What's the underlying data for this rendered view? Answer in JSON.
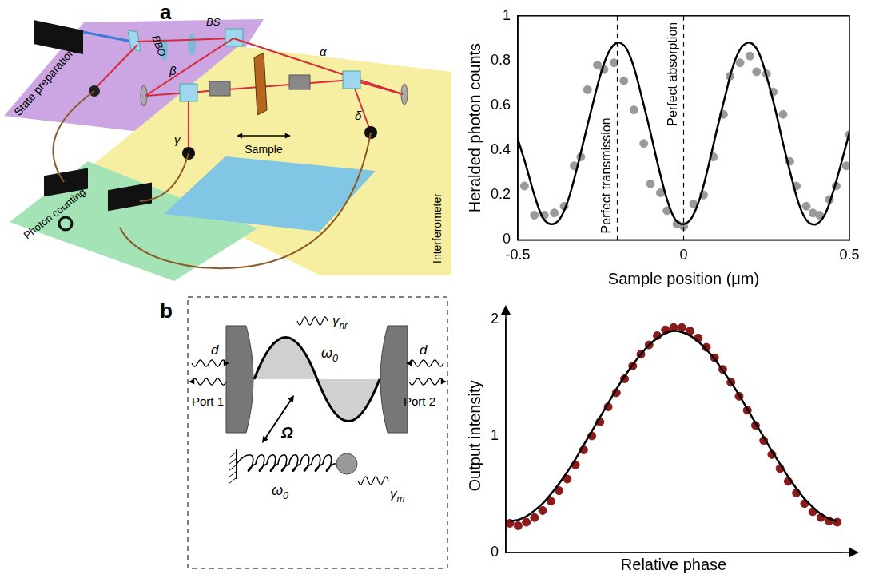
{
  "chart_data": [
    {
      "type": "scatter",
      "x_label": "Sample position (μm)",
      "y_label": "Heralded photon counts",
      "xlim": [
        -0.5,
        0.5
      ],
      "xticks": [
        -0.5,
        0,
        0.5
      ],
      "ylim": [
        0,
        1
      ],
      "yticks": [
        0,
        0.2,
        0.4,
        0.6,
        0.8,
        1
      ],
      "grid": false,
      "series": [
        {
          "type": "scatter",
          "color": "#999999",
          "marker": "circle",
          "x": [
            -0.48,
            -0.45,
            -0.42,
            -0.39,
            -0.36,
            -0.33,
            -0.31,
            -0.29,
            -0.26,
            -0.24,
            -0.21,
            -0.18,
            -0.15,
            -0.12,
            -0.1,
            -0.07,
            -0.05,
            -0.02,
            0.0,
            0.03,
            0.06,
            0.09,
            0.12,
            0.14,
            0.17,
            0.2,
            0.22,
            0.25,
            0.27,
            0.3,
            0.32,
            0.34,
            0.37,
            0.39,
            0.41,
            0.44,
            0.46,
            0.49,
            0.5
          ],
          "values": [
            0.24,
            0.11,
            0.11,
            0.12,
            0.15,
            0.33,
            0.37,
            0.67,
            0.78,
            0.76,
            0.79,
            0.71,
            0.58,
            0.43,
            0.25,
            0.21,
            0.13,
            0.07,
            0.06,
            0.16,
            0.2,
            0.37,
            0.56,
            0.73,
            0.79,
            0.82,
            0.75,
            0.74,
            0.66,
            0.56,
            0.35,
            0.24,
            0.15,
            0.12,
            0.11,
            0.18,
            0.24,
            0.33,
            0.47
          ]
        },
        {
          "type": "line",
          "color": "#000000",
          "line_style": "solid",
          "x": [
            -0.5,
            -0.475,
            -0.45,
            -0.425,
            -0.4,
            -0.375,
            -0.35,
            -0.325,
            -0.3,
            -0.275,
            -0.25,
            -0.225,
            -0.2,
            -0.175,
            -0.15,
            -0.125,
            -0.1,
            -0.075,
            -0.05,
            -0.025,
            0,
            0.025,
            0.05,
            0.075,
            0.1,
            0.125,
            0.15,
            0.175,
            0.2,
            0.225,
            0.25,
            0.275,
            0.3,
            0.325,
            0.35,
            0.375,
            0.4,
            0.425,
            0.45,
            0.475,
            0.5
          ],
          "values": [
            0.45,
            0.33,
            0.2,
            0.1,
            0.07,
            0.09,
            0.17,
            0.3,
            0.45,
            0.6,
            0.74,
            0.84,
            0.88,
            0.86,
            0.77,
            0.63,
            0.48,
            0.32,
            0.18,
            0.09,
            0.07,
            0.1,
            0.19,
            0.33,
            0.49,
            0.64,
            0.78,
            0.86,
            0.88,
            0.84,
            0.73,
            0.59,
            0.43,
            0.28,
            0.15,
            0.08,
            0.07,
            0.11,
            0.21,
            0.34,
            0.48
          ]
        }
      ],
      "annotations": [
        {
          "x": -0.2,
          "text": "Perfect transmission",
          "line_style": "dashed"
        },
        {
          "x": 0,
          "text": "Perfect absorption",
          "line_style": "dashed"
        }
      ]
    },
    {
      "type": "line",
      "x_label": "Relative phase",
      "y_label": "Output intensity",
      "categories": [
        null,
        null,
        null,
        null,
        null,
        null,
        null,
        null,
        null,
        null,
        null,
        null,
        null,
        null,
        null,
        null,
        null,
        null,
        null,
        null,
        null,
        null,
        null,
        null,
        null,
        null,
        null,
        null,
        null,
        null,
        null,
        null,
        null,
        null,
        null,
        null,
        null,
        null,
        null,
        null,
        null
      ],
      "ylim": [
        0,
        2
      ],
      "yticks": [
        0,
        1,
        2
      ],
      "grid": false,
      "tick_labels": "y",
      "series": [
        {
          "type": "scatter",
          "color": "#8b1a1a",
          "marker": "circle",
          "values": [
            0.25,
            0.23,
            0.26,
            0.3,
            0.36,
            0.44,
            0.53,
            0.63,
            0.75,
            0.88,
            1.0,
            1.12,
            1.25,
            1.37,
            1.49,
            1.6,
            1.7,
            1.78,
            1.86,
            1.91,
            1.93,
            1.93,
            1.9,
            1.84,
            1.76,
            1.67,
            1.57,
            1.46,
            1.34,
            1.22,
            1.09,
            0.96,
            0.84,
            0.72,
            0.61,
            0.51,
            0.42,
            0.35,
            0.3,
            0.27,
            0.26
          ]
        },
        {
          "type": "line",
          "color": "#000000",
          "line_style": "solid",
          "values": [
            0.27,
            0.28,
            0.31,
            0.36,
            0.42,
            0.5,
            0.59,
            0.69,
            0.8,
            0.92,
            1.04,
            1.16,
            1.28,
            1.4,
            1.51,
            1.61,
            1.7,
            1.78,
            1.84,
            1.88,
            1.9,
            1.89,
            1.86,
            1.81,
            1.74,
            1.66,
            1.56,
            1.46,
            1.35,
            1.23,
            1.11,
            0.99,
            0.87,
            0.76,
            0.65,
            0.55,
            0.46,
            0.39,
            0.33,
            0.29,
            0.27
          ]
        }
      ]
    }
  ],
  "diagrams": {
    "a": {
      "letter": "a",
      "labels": {
        "state_preparation": "State preparation",
        "bbo": "BBO",
        "bs": "BS",
        "alpha": "α",
        "beta": "β",
        "gamma": "γ",
        "delta": "δ",
        "sample": "Sample",
        "photon_counting": "Photon counting",
        "interferometer": "Interferometer"
      }
    },
    "b": {
      "letter": "b",
      "labels": {
        "port1": "Port 1",
        "port2": "Port 2",
        "d_left": "d",
        "d_right": "d",
        "cavity_mode": {
          "text": "ω",
          "sub": "0"
        },
        "oscillator": {
          "text": "ω",
          "sub": "0"
        },
        "coupling": "Ω",
        "gamma_nr": {
          "text": "γ",
          "sub": "nr"
        },
        "gamma_m": {
          "text": "γ",
          "sub": "m"
        }
      }
    }
  }
}
